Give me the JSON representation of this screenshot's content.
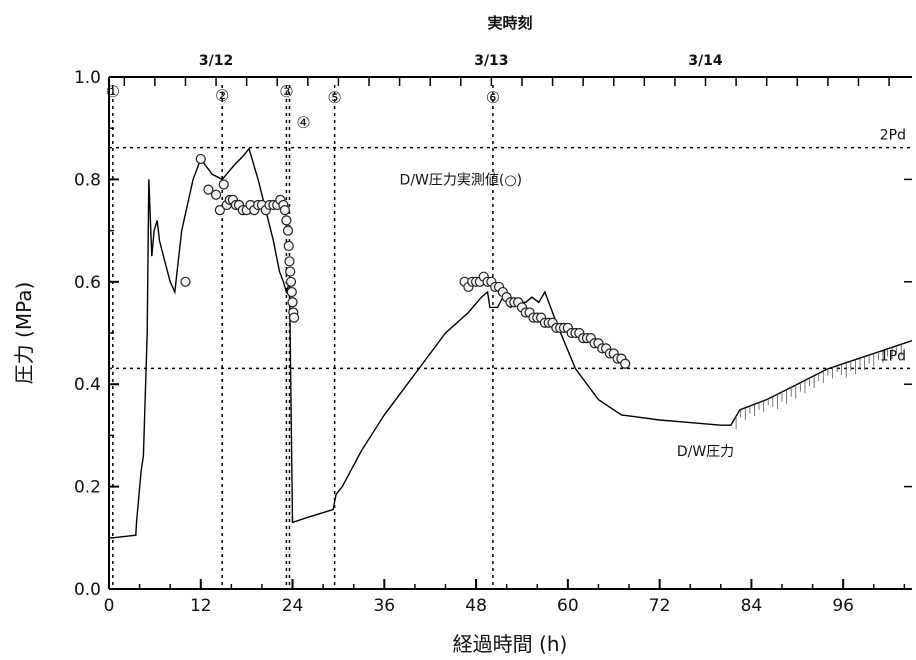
{
  "chart_data": {
    "type": "line",
    "title": "",
    "top_axis_title": "実時刻",
    "xlabel": "経過時間 (h)",
    "ylabel": "圧力 (MPa)",
    "xlim": [
      0,
      105
    ],
    "ylim": [
      0,
      1.0
    ],
    "x_ticks": [
      0,
      12,
      24,
      36,
      48,
      60,
      72,
      84,
      96
    ],
    "y_ticks": [
      0.0,
      0.2,
      0.4,
      0.6,
      0.8,
      1.0
    ],
    "y_tick_labels": [
      "0.0",
      "0.2",
      "0.4",
      "0.6",
      "0.8",
      "1.0"
    ],
    "top_ticks": [
      {
        "x": 14,
        "label": "3/12"
      },
      {
        "x": 50,
        "label": "3/13"
      },
      {
        "x": 78,
        "label": "3/14"
      }
    ],
    "grid": false,
    "series": [
      {
        "name": "D/W圧力",
        "style": "line",
        "x": [
          0.5,
          3.5,
          3.6,
          4.2,
          4.5,
          5.0,
          5.2,
          5.6,
          5.9,
          6.3,
          6.6,
          7.3,
          8.0,
          8.6,
          9.5,
          11,
          12,
          13.5,
          14.8,
          16.5,
          17.5,
          18.3,
          19.5,
          21.5,
          22.3,
          22.8,
          23.2,
          23.4,
          23.6,
          24,
          26,
          29.3,
          29.7,
          30.5,
          33,
          36,
          40,
          44,
          47,
          48.7,
          49.5,
          49.8,
          50.8,
          51.5,
          52.5,
          53.5,
          54.5,
          55.3,
          56.2,
          57,
          58.5,
          61,
          64,
          67,
          72,
          76,
          80,
          81.3,
          82.5,
          86,
          90,
          94,
          98,
          101,
          104,
          105
        ],
        "y": [
          0.1,
          0.105,
          0.13,
          0.23,
          0.26,
          0.5,
          0.8,
          0.65,
          0.7,
          0.72,
          0.68,
          0.64,
          0.6,
          0.58,
          0.7,
          0.8,
          0.84,
          0.81,
          0.8,
          0.83,
          0.845,
          0.86,
          0.8,
          0.68,
          0.62,
          0.6,
          0.58,
          0.59,
          0.6,
          0.13,
          0.14,
          0.155,
          0.185,
          0.2,
          0.27,
          0.34,
          0.42,
          0.5,
          0.54,
          0.57,
          0.58,
          0.55,
          0.55,
          0.57,
          0.55,
          0.56,
          0.56,
          0.57,
          0.56,
          0.58,
          0.52,
          0.43,
          0.37,
          0.34,
          0.33,
          0.325,
          0.32,
          0.32,
          0.35,
          0.37,
          0.4,
          0.43,
          0.45,
          0.465,
          0.48,
          0.485
        ]
      },
      {
        "name": "D/W圧力実測値(○)",
        "style": "markers",
        "x": [
          10,
          12,
          13,
          14,
          14.5,
          15,
          15.4,
          15.8,
          16.2,
          16.6,
          17,
          17.5,
          18,
          18.5,
          19,
          19.5,
          20,
          20.5,
          21,
          21.5,
          22,
          22.4,
          22.8,
          23,
          23.2,
          23.4,
          23.5,
          23.6,
          23.7,
          23.8,
          23.9,
          24,
          24.1,
          24.2,
          46.5,
          47,
          47.5,
          48,
          48.5,
          49,
          49.5,
          50,
          50.5,
          51,
          51.5,
          52,
          52.5,
          53,
          53.5,
          54,
          54.5,
          55,
          55.5,
          56,
          56.5,
          57,
          57.5,
          58,
          58.5,
          59,
          59.5,
          60,
          60.5,
          61,
          61.5,
          62,
          62.5,
          63,
          63.5,
          64,
          64.5,
          65,
          65.5,
          66,
          66.5,
          67,
          67.5
        ],
        "y": [
          0.6,
          0.84,
          0.78,
          0.77,
          0.74,
          0.79,
          0.75,
          0.76,
          0.76,
          0.75,
          0.75,
          0.74,
          0.74,
          0.75,
          0.74,
          0.75,
          0.75,
          0.74,
          0.75,
          0.75,
          0.75,
          0.76,
          0.75,
          0.74,
          0.72,
          0.7,
          0.67,
          0.64,
          0.62,
          0.6,
          0.58,
          0.56,
          0.54,
          0.53,
          0.6,
          0.59,
          0.6,
          0.6,
          0.6,
          0.61,
          0.6,
          0.6,
          0.59,
          0.59,
          0.58,
          0.57,
          0.56,
          0.56,
          0.56,
          0.55,
          0.54,
          0.54,
          0.53,
          0.53,
          0.53,
          0.52,
          0.52,
          0.52,
          0.51,
          0.51,
          0.51,
          0.51,
          0.5,
          0.5,
          0.5,
          0.49,
          0.49,
          0.49,
          0.48,
          0.48,
          0.47,
          0.47,
          0.46,
          0.46,
          0.45,
          0.45,
          0.44
        ]
      }
    ],
    "hlines": [
      {
        "y": 0.862,
        "label": "2Pd"
      },
      {
        "y": 0.431,
        "label": "1Pd"
      }
    ],
    "vlines": [
      {
        "x": 0.5,
        "label": "①"
      },
      {
        "x": 14.8,
        "label": "②"
      },
      {
        "x": 23.2,
        "label": "③"
      },
      {
        "x": 23.6,
        "label": "④"
      },
      {
        "x": 29.5,
        "label": "⑤"
      },
      {
        "x": 50.2,
        "label": "⑥"
      }
    ],
    "annotations": [
      {
        "text": "D/W圧力実測値(○)",
        "x": 46,
        "y": 0.79
      },
      {
        "text": "D/W圧力",
        "x": 78,
        "y": 0.26
      }
    ]
  }
}
